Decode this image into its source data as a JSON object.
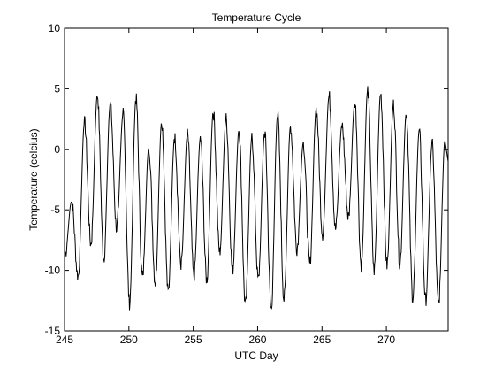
{
  "chart_data": {
    "type": "line",
    "title": "Temperature Cycle",
    "xlabel": "UTC Day",
    "ylabel": "Temperature (celcius)",
    "xlim": [
      245,
      274.8
    ],
    "ylim": [
      -15,
      10
    ],
    "xticks": [
      245,
      250,
      255,
      260,
      265,
      270
    ],
    "yticks": [
      -15,
      -10,
      -5,
      0,
      5,
      10
    ],
    "grid": false,
    "line_color": "#000000",
    "cycles": [
      {
        "day": 245.0,
        "max": -4.3,
        "min": -8.6
      },
      {
        "day": 246.0,
        "max": 2.2,
        "min": -10.5
      },
      {
        "day": 247.0,
        "max": 4.5,
        "min": -7.8
      },
      {
        "day": 248.0,
        "max": 3.7,
        "min": -9.0
      },
      {
        "day": 249.0,
        "max": 2.9,
        "min": -6.5
      },
      {
        "day": 250.0,
        "max": 4.2,
        "min": -12.7
      },
      {
        "day": 251.0,
        "max": 0.2,
        "min": -10.6
      },
      {
        "day": 252.0,
        "max": 2.3,
        "min": -11.0
      },
      {
        "day": 253.0,
        "max": 1.0,
        "min": -11.8
      },
      {
        "day": 254.0,
        "max": 1.2,
        "min": -9.5
      },
      {
        "day": 255.0,
        "max": 0.9,
        "min": -10.5
      },
      {
        "day": 256.0,
        "max": 3.1,
        "min": -10.8
      },
      {
        "day": 257.0,
        "max": 2.5,
        "min": -8.5
      },
      {
        "day": 258.0,
        "max": 1.6,
        "min": -10.0
      },
      {
        "day": 259.0,
        "max": 1.0,
        "min": -12.9
      },
      {
        "day": 260.0,
        "max": 1.4,
        "min": -10.8
      },
      {
        "day": 261.0,
        "max": 2.8,
        "min": -13.2
      },
      {
        "day": 262.0,
        "max": 1.9,
        "min": -12.4
      },
      {
        "day": 263.0,
        "max": 0.5,
        "min": -8.2
      },
      {
        "day": 264.0,
        "max": 3.3,
        "min": -9.5
      },
      {
        "day": 265.0,
        "max": 4.4,
        "min": -7.0
      },
      {
        "day": 266.0,
        "max": 2.0,
        "min": -6.6
      },
      {
        "day": 267.0,
        "max": 3.9,
        "min": -5.6
      },
      {
        "day": 268.0,
        "max": 4.9,
        "min": -9.6
      },
      {
        "day": 269.0,
        "max": 4.6,
        "min": -10.0
      },
      {
        "day": 270.0,
        "max": 3.7,
        "min": -9.6
      },
      {
        "day": 271.0,
        "max": 3.0,
        "min": -9.4
      },
      {
        "day": 272.0,
        "max": 1.5,
        "min": -12.2
      },
      {
        "day": 273.0,
        "max": 0.4,
        "min": -12.5
      },
      {
        "day": 274.0,
        "max": 0.7,
        "min": -12.8
      }
    ]
  }
}
